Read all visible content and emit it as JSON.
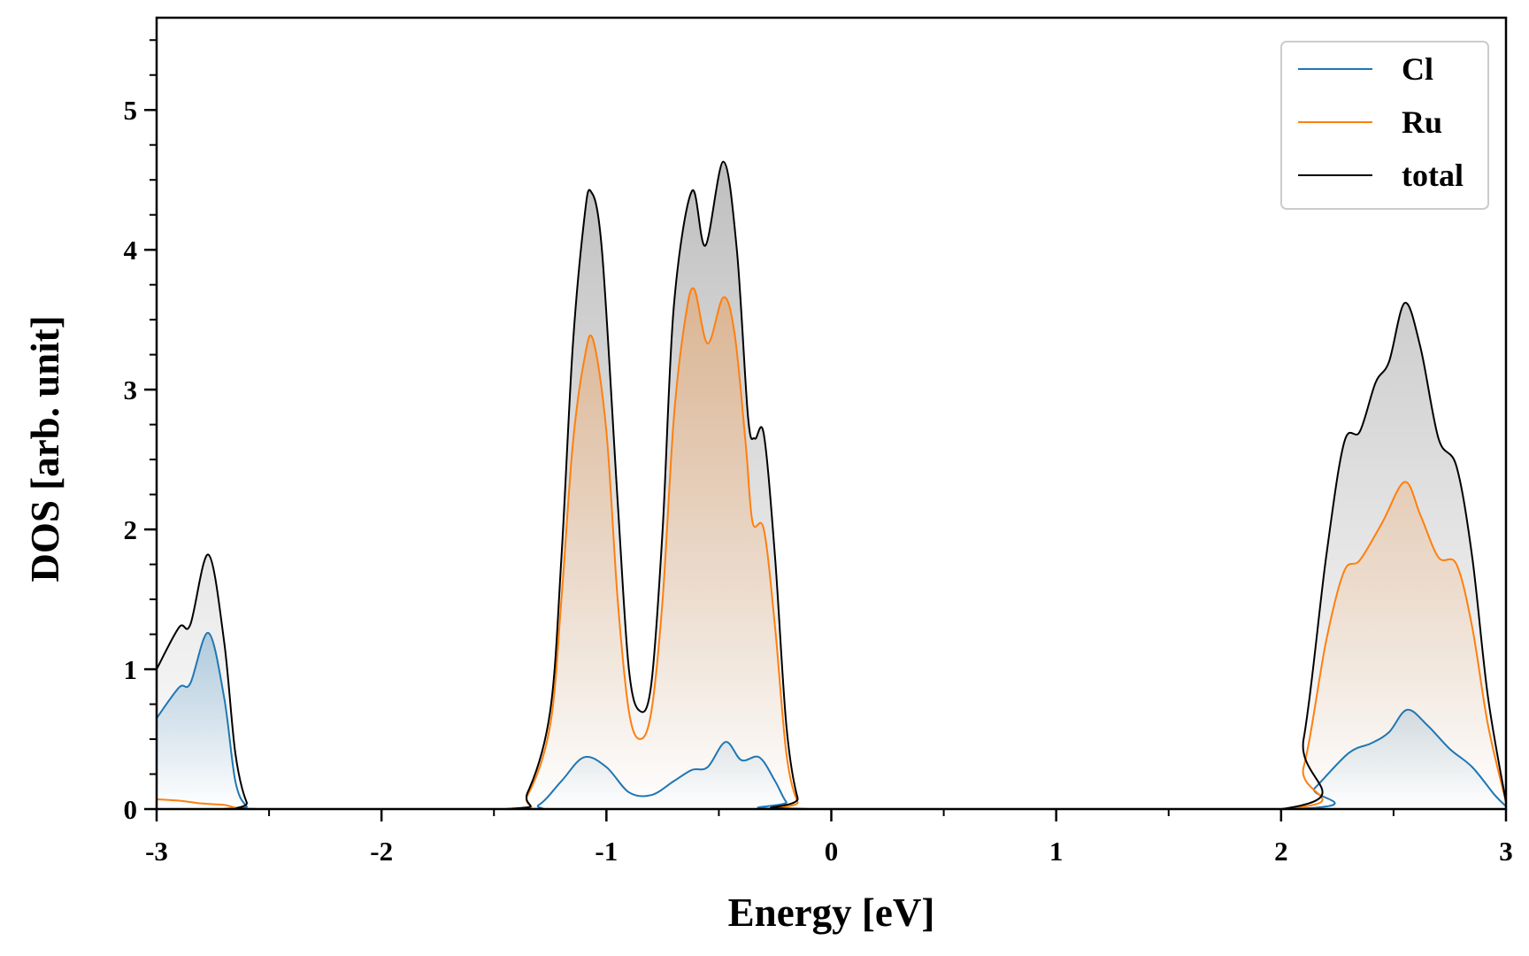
{
  "chart_data": {
    "type": "area",
    "title": "",
    "xlabel": "Energy [eV]",
    "ylabel": "DOS [arb. unit]",
    "xlim": [
      -3,
      3
    ],
    "ylim": [
      0,
      5.66
    ],
    "xticks": [
      -3,
      -2,
      -1,
      0,
      1,
      2,
      3
    ],
    "xtick_labels": [
      "-3",
      "-2",
      "-1",
      "0",
      "1",
      "2",
      "3"
    ],
    "yticks": [
      0,
      1,
      2,
      3,
      4,
      5
    ],
    "ytick_labels": [
      "0",
      "1",
      "2",
      "3",
      "4",
      "5"
    ],
    "x_minor_step": 0.5,
    "y_minor_step": 0.25,
    "grid": false,
    "legend": "top-right",
    "series": [
      {
        "name": "Cl",
        "color": "#1f77b4",
        "x": [
          -3,
          -2.9,
          -2.85,
          -2.77,
          -2.7,
          -2.65,
          -2.6,
          -2.55,
          -1.4,
          -1.3,
          -1.2,
          -1.1,
          -1.0,
          -0.9,
          -0.8,
          -0.7,
          -0.62,
          -0.55,
          -0.47,
          -0.4,
          -0.32,
          -0.25,
          -0.2,
          -0.15,
          2.05,
          2.15,
          2.3,
          2.4,
          2.48,
          2.56,
          2.65,
          2.75,
          2.85,
          2.95,
          3.0
        ],
        "y": [
          0.65,
          0.87,
          0.9,
          1.26,
          0.8,
          0.2,
          0.02,
          0,
          0,
          0.03,
          0.2,
          0.37,
          0.3,
          0.12,
          0.1,
          0.2,
          0.28,
          0.3,
          0.48,
          0.35,
          0.37,
          0.2,
          0.05,
          0,
          0,
          0.15,
          0.4,
          0.47,
          0.55,
          0.71,
          0.6,
          0.43,
          0.3,
          0.1,
          0.02
        ]
      },
      {
        "name": "Ru",
        "color": "#ff7f0e",
        "x": [
          -3,
          -2.9,
          -2.8,
          -2.7,
          -2.65,
          -2.6,
          -1.45,
          -1.35,
          -1.25,
          -1.2,
          -1.15,
          -1.1,
          -1.06,
          -1.0,
          -0.95,
          -0.9,
          -0.85,
          -0.8,
          -0.75,
          -0.7,
          -0.65,
          -0.61,
          -0.55,
          -0.48,
          -0.43,
          -0.38,
          -0.35,
          -0.3,
          -0.25,
          -0.2,
          -0.15,
          -0.1,
          2.0,
          2.1,
          2.2,
          2.28,
          2.35,
          2.45,
          2.55,
          2.62,
          2.7,
          2.78,
          2.85,
          2.92,
          3.0
        ],
        "y": [
          0.07,
          0.06,
          0.04,
          0.03,
          0.01,
          0,
          0,
          0.1,
          0.6,
          1.5,
          2.6,
          3.2,
          3.36,
          2.7,
          1.5,
          0.7,
          0.5,
          0.7,
          1.5,
          2.8,
          3.5,
          3.72,
          3.33,
          3.66,
          3.4,
          2.6,
          2.05,
          2.0,
          1.3,
          0.4,
          0.05,
          0,
          0,
          0.3,
          1.2,
          1.7,
          1.78,
          2.05,
          2.34,
          2.1,
          1.8,
          1.75,
          1.3,
          0.6,
          0.05
        ]
      },
      {
        "name": "total",
        "color": "#000000",
        "x": [
          -3,
          -2.9,
          -2.85,
          -2.77,
          -2.7,
          -2.65,
          -2.6,
          -2.55,
          -1.45,
          -1.35,
          -1.25,
          -1.2,
          -1.15,
          -1.1,
          -1.07,
          -1.02,
          -0.95,
          -0.9,
          -0.85,
          -0.8,
          -0.75,
          -0.7,
          -0.62,
          -0.56,
          -0.48,
          -0.42,
          -0.37,
          -0.34,
          -0.3,
          -0.25,
          -0.2,
          -0.15,
          -0.1,
          2.0,
          2.1,
          2.2,
          2.28,
          2.35,
          2.42,
          2.48,
          2.55,
          2.62,
          2.7,
          2.78,
          2.85,
          2.92,
          3.0
        ],
        "y": [
          1.0,
          1.3,
          1.32,
          1.82,
          1.2,
          0.4,
          0.05,
          0,
          0,
          0.12,
          0.7,
          1.8,
          3.3,
          4.2,
          4.42,
          4.0,
          2.2,
          1.0,
          0.7,
          0.9,
          2.0,
          3.6,
          4.42,
          4.03,
          4.63,
          4.0,
          2.8,
          2.65,
          2.68,
          1.8,
          0.6,
          0.08,
          0,
          0,
          0.5,
          1.8,
          2.62,
          2.7,
          3.05,
          3.2,
          3.62,
          3.3,
          2.65,
          2.45,
          1.8,
          0.8,
          0.05
        ]
      }
    ]
  }
}
